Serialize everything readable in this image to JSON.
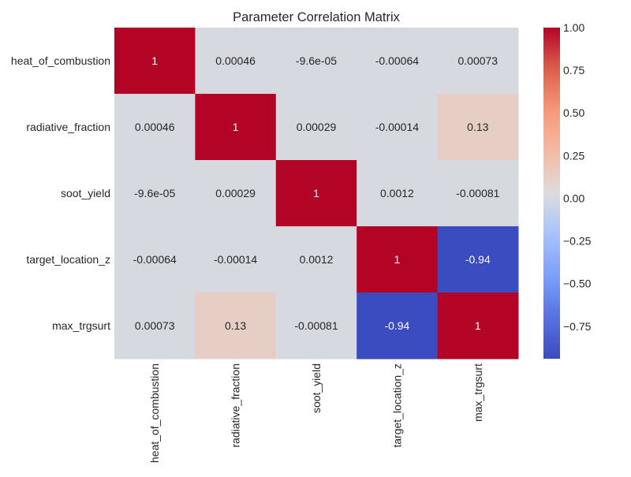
{
  "chart_data": {
    "type": "heatmap",
    "title": "Parameter Correlation Matrix",
    "row_labels": [
      "heat_of_combustion",
      "radiative_fraction",
      "soot_yield",
      "target_location_z",
      "max_trgsurt"
    ],
    "col_labels": [
      "heat_of_combustion",
      "radiative_fraction",
      "soot_yield",
      "target_location_z",
      "max_trgsurt"
    ],
    "values": [
      [
        1,
        0.00046,
        -9.6e-05,
        -0.00064,
        0.00073
      ],
      [
        0.00046,
        1,
        0.00029,
        -0.00014,
        0.13
      ],
      [
        -9.6e-05,
        0.00029,
        1,
        0.0012,
        -0.00081
      ],
      [
        -0.00064,
        -0.00014,
        0.0012,
        1,
        -0.94
      ],
      [
        0.00073,
        0.13,
        -0.00081,
        -0.94,
        1
      ]
    ],
    "annotations": [
      [
        "1",
        "0.00046",
        "-9.6e-05",
        "-0.00064",
        "0.00073"
      ],
      [
        "0.00046",
        "1",
        "0.00029",
        "-0.00014",
        "0.13"
      ],
      [
        "-9.6e-05",
        "0.00029",
        "1",
        "0.0012",
        "-0.00081"
      ],
      [
        "-0.00064",
        "-0.00014",
        "0.0012",
        "1",
        "-0.94"
      ],
      [
        "0.00073",
        "0.13",
        "-0.00081",
        "-0.94",
        "1"
      ]
    ],
    "colormap": "coolwarm",
    "vmin": -0.94,
    "vmax": 1.0,
    "colorbar_ticks": [
      1.0,
      0.75,
      0.5,
      0.25,
      0.0,
      -0.25,
      -0.5,
      -0.75
    ],
    "colorbar_tick_labels": [
      "1.00",
      "0.75",
      "0.50",
      "0.25",
      "0.00",
      "−0.25",
      "−0.50",
      "−0.75"
    ],
    "colorbar_placement": "right"
  }
}
